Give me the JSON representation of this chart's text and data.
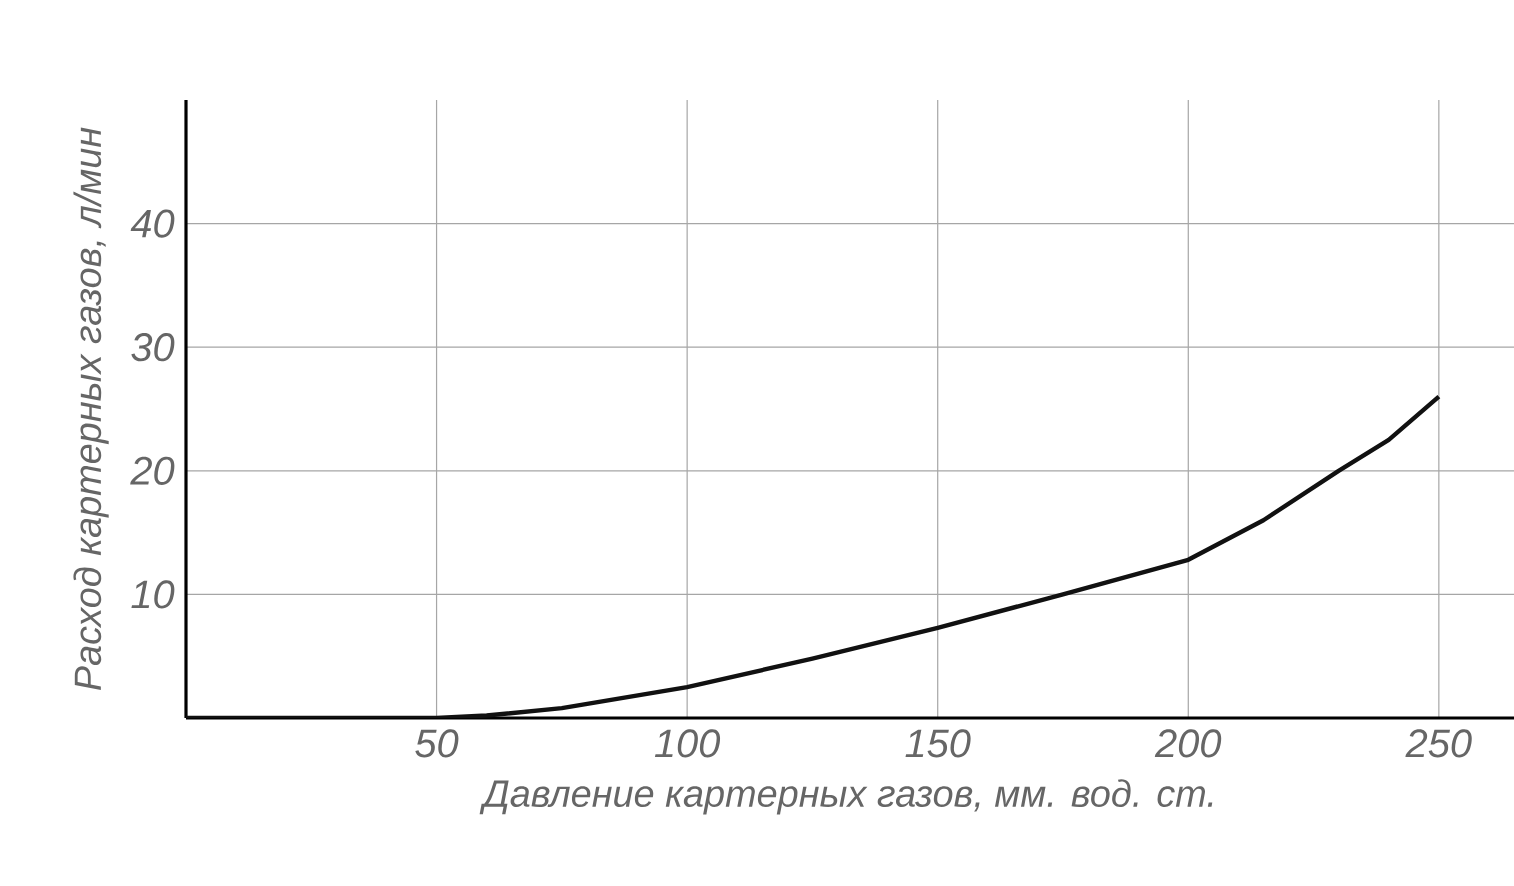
{
  "chart_data": {
    "type": "line",
    "xlabel": "Давление картерных газов, мм. вод. ст.",
    "ylabel": "Расход картерных газов, л/мин",
    "x": [
      0,
      25,
      50,
      60,
      75,
      100,
      125,
      150,
      175,
      200,
      215,
      230,
      240,
      250
    ],
    "series": [
      {
        "color": "#111111",
        "values": [
          0,
          0,
          0,
          0.2,
          0.8,
          2.5,
          4.8,
          7.3,
          10,
          12.8,
          16,
          20,
          22.5,
          26
        ]
      }
    ],
    "xlim": [
      0,
      265
    ],
    "ylim": [
      0,
      50
    ],
    "xticks": [
      50,
      100,
      150,
      200,
      250
    ],
    "yticks": [
      10,
      20,
      30,
      40
    ],
    "grid": true,
    "marker": "none",
    "line_style": "solid"
  }
}
